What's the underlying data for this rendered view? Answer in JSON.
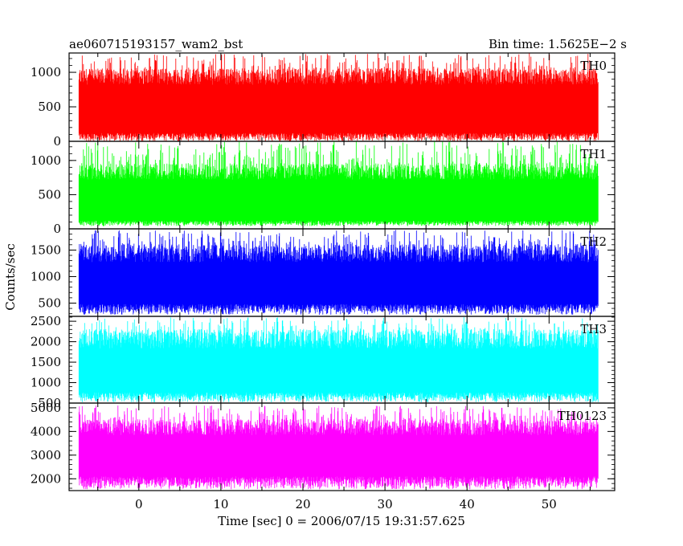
{
  "header": {
    "left_title": "ae060715193157_wam2_bst",
    "right_title": "Bin time: 1.5625E−2 s"
  },
  "chart_data": {
    "type": "line",
    "xlabel": "Time [sec] 0 = 2006/07/15 19:31:57.625",
    "ylabel": "Counts/sec",
    "xlim": [
      -8.5,
      58
    ],
    "data_x_range": [
      -7.3,
      56
    ],
    "bin_time_s": 0.015625,
    "xticks": [
      0,
      10,
      20,
      30,
      40,
      50
    ],
    "grid": false,
    "panels": [
      {
        "name": "TH0",
        "color": "#ff0000",
        "ylim": [
          0,
          1280
        ],
        "yticks": [
          0,
          500,
          1000
        ],
        "ytick_labels": [
          "0",
          "500",
          "1000"
        ],
        "low": [
          0,
          120
        ],
        "mean": 580,
        "high": [
          980,
          1280
        ]
      },
      {
        "name": "TH1",
        "color": "#00ff00",
        "ylim": [
          0,
          1280
        ],
        "yticks": [
          0,
          500,
          1000
        ],
        "ytick_labels": [
          "0",
          "500",
          "1000"
        ],
        "low": [
          40,
          120
        ],
        "mean": 480,
        "high": [
          880,
          1280
        ]
      },
      {
        "name": "TH2",
        "color": "#0000ff",
        "ylim": [
          250,
          1900
        ],
        "yticks": [
          500,
          1000,
          1500
        ],
        "ytick_labels": [
          "500",
          "1000",
          "1500"
        ],
        "low": [
          280,
          480
        ],
        "mean": 930,
        "high": [
          1500,
          1880
        ]
      },
      {
        "name": "TH3",
        "color": "#00ffff",
        "ylim": [
          500,
          2620
        ],
        "yticks": [
          500,
          1000,
          1500,
          2000,
          2500
        ],
        "ytick_labels": [
          "500",
          "1000",
          "1500",
          "2000",
          "2500"
        ],
        "low": [
          520,
          760
        ],
        "mean": 1350,
        "high": [
          2150,
          2600
        ]
      },
      {
        "name": "TH0123",
        "color": "#ff00ff",
        "ylim": [
          1500,
          5200
        ],
        "yticks": [
          2000,
          3000,
          4000,
          5000
        ],
        "ytick_labels": [
          "2000",
          "3000",
          "4000",
          "5000"
        ],
        "low": [
          1550,
          2100
        ],
        "mean": 3150,
        "high": [
          4300,
          5100
        ]
      }
    ]
  }
}
